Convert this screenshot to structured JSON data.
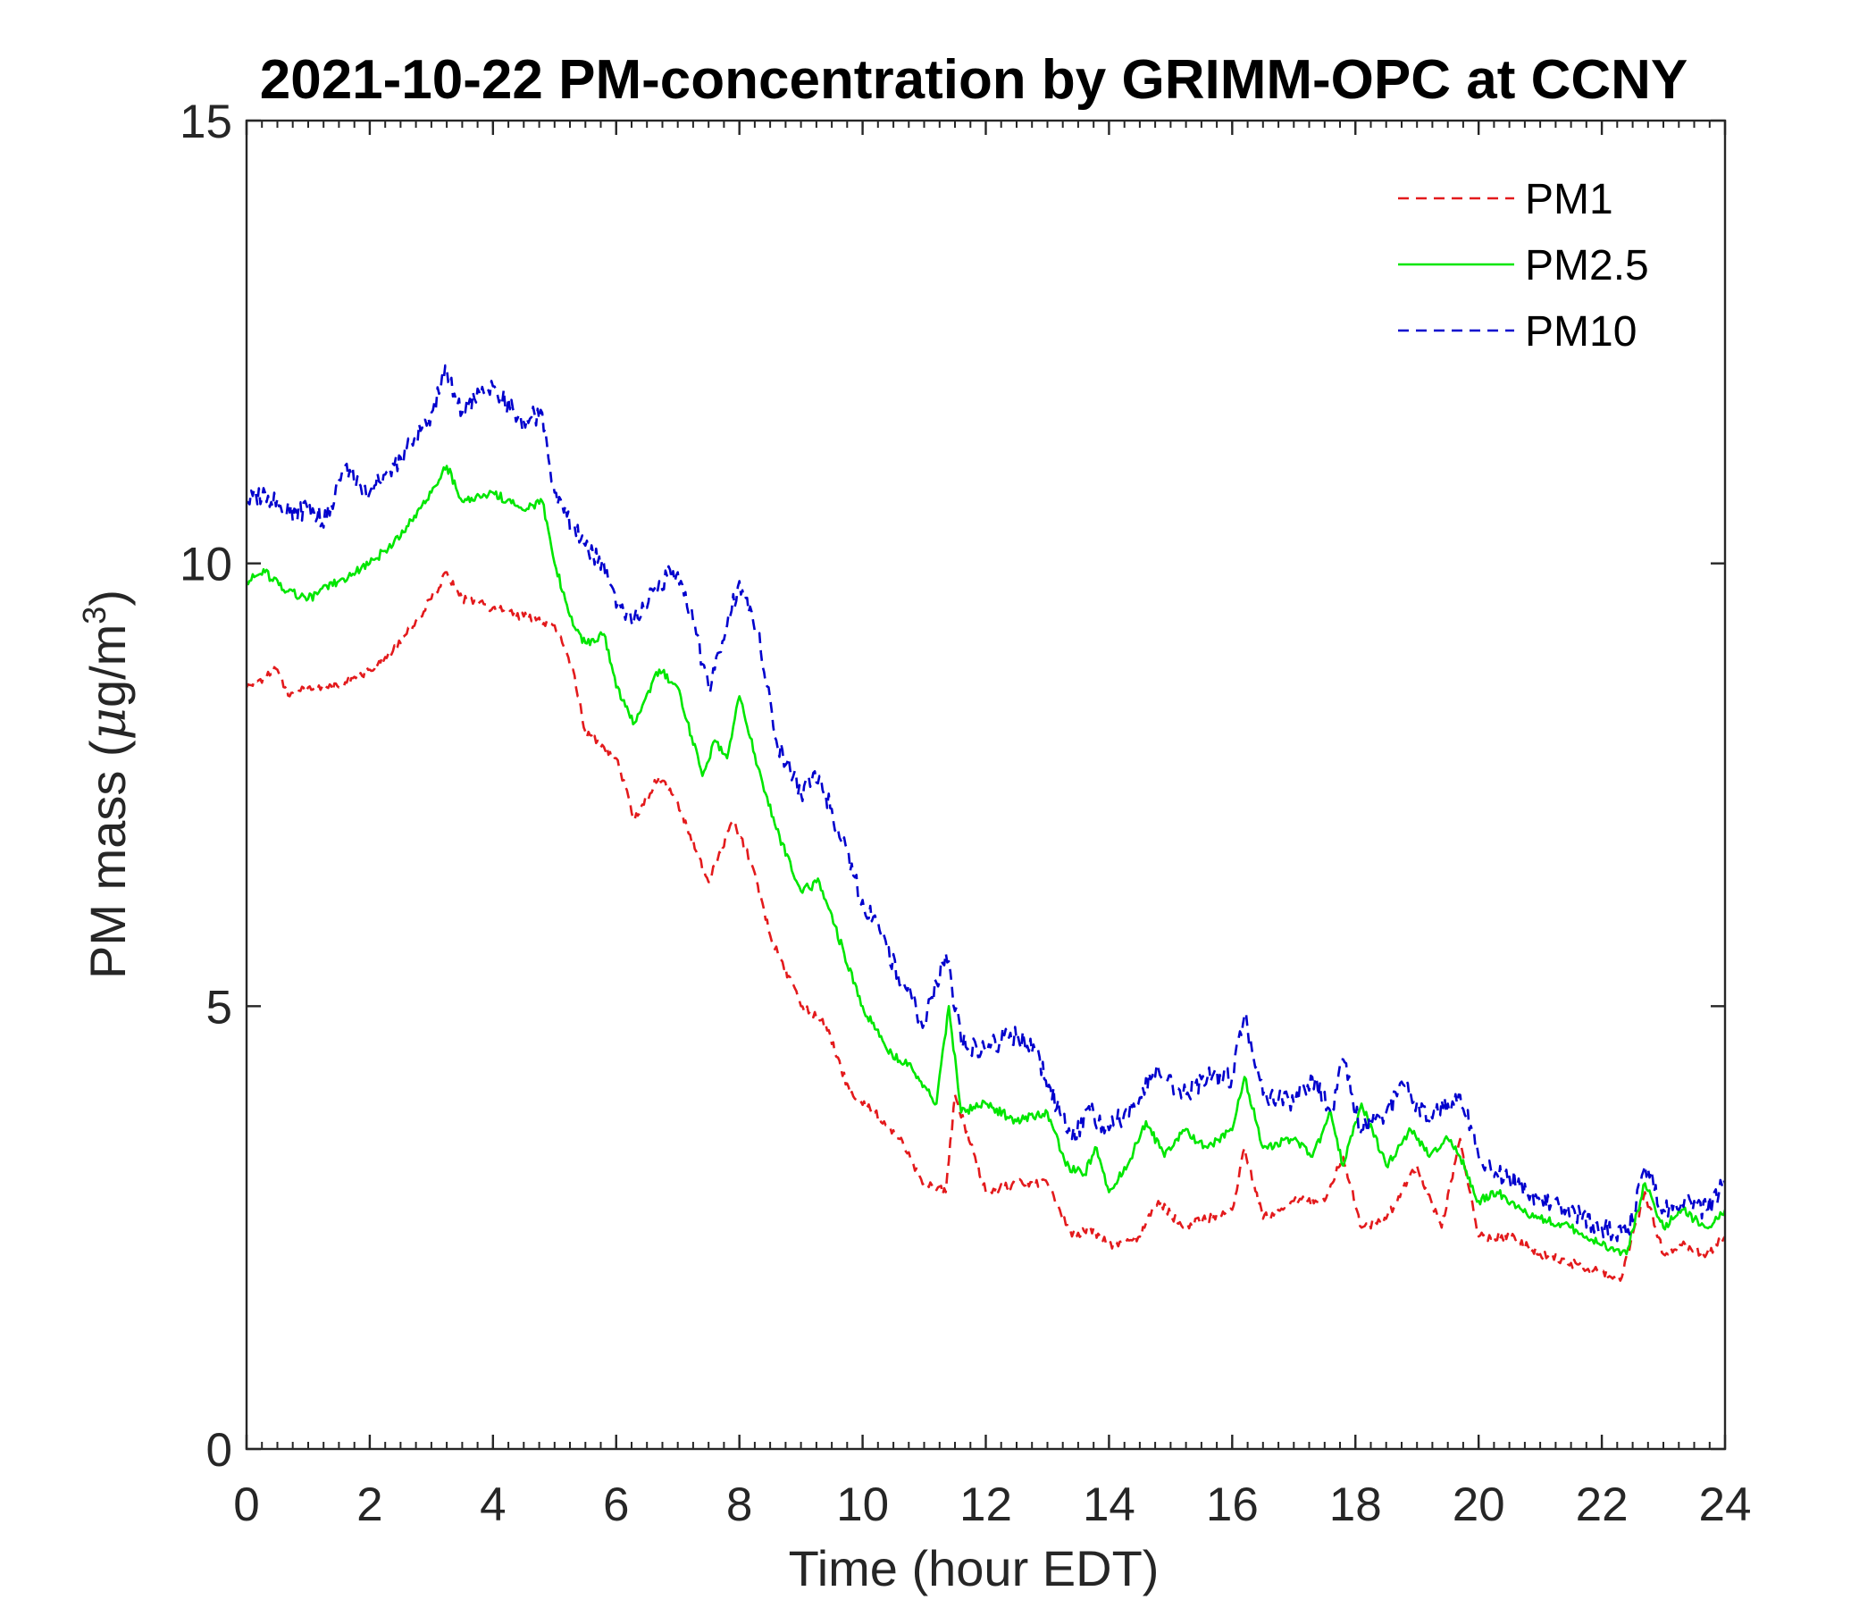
{
  "chart_data": {
    "type": "line",
    "title": "2021-10-22 PM-concentration by GRIMM-OPC at CCNY",
    "xlabel": "Time (hour EDT)",
    "ylabel_prefix": "PM mass (",
    "ylabel_mu": "μ",
    "ylabel_unit": "g/m",
    "ylabel_sup": "3",
    "ylabel_suffix": ")",
    "xlim": [
      0,
      24
    ],
    "ylim": [
      0,
      15
    ],
    "x_ticks": [
      0,
      2,
      4,
      6,
      8,
      10,
      12,
      14,
      16,
      18,
      20,
      22,
      24
    ],
    "x_tick_labels": [
      "0",
      "2",
      "4",
      "6",
      "8",
      "10",
      "12",
      "14",
      "16",
      "18",
      "20",
      "22",
      "24"
    ],
    "y_ticks": [
      0,
      5,
      10,
      15
    ],
    "y_tick_labels": [
      "0",
      "5",
      "10",
      "15"
    ],
    "legend_position": "top-right",
    "series": [
      {
        "name": "PM1",
        "color": "#e31a1c",
        "style": "dashed",
        "x": [
          0,
          0.5,
          0.7,
          1.0,
          1.5,
          2.0,
          2.5,
          3.0,
          3.25,
          3.5,
          4.0,
          4.5,
          5.0,
          5.3,
          5.5,
          6.0,
          6.3,
          6.7,
          7.0,
          7.5,
          7.9,
          8.2,
          8.5,
          9.0,
          9.4,
          9.8,
          10.2,
          10.6,
          11.0,
          11.35,
          11.5,
          12.0,
          12.5,
          13.0,
          13.4,
          13.7,
          14.0,
          14.5,
          14.8,
          15.2,
          15.6,
          16.0,
          16.2,
          16.5,
          17.0,
          17.5,
          17.8,
          18.1,
          18.5,
          19.0,
          19.4,
          19.7,
          20.0,
          20.5,
          21.0,
          21.5,
          22.0,
          22.3,
          22.7,
          23.0,
          23.3,
          23.7,
          24.0
        ],
        "y": [
          8.6,
          8.8,
          8.5,
          8.6,
          8.6,
          8.8,
          9.1,
          9.6,
          9.9,
          9.6,
          9.5,
          9.4,
          9.3,
          8.8,
          8.1,
          7.8,
          7.1,
          7.6,
          7.3,
          6.4,
          7.1,
          6.6,
          5.8,
          5.0,
          4.8,
          4.0,
          3.8,
          3.5,
          3.0,
          2.9,
          4.0,
          2.9,
          3.0,
          3.0,
          2.4,
          2.5,
          2.3,
          2.4,
          2.8,
          2.5,
          2.6,
          2.7,
          3.4,
          2.6,
          2.8,
          2.8,
          3.3,
          2.5,
          2.6,
          3.2,
          2.5,
          3.5,
          2.4,
          2.4,
          2.2,
          2.1,
          2.0,
          1.9,
          2.9,
          2.2,
          2.3,
          2.2,
          2.4
        ]
      },
      {
        "name": "PM2.5",
        "color": "#00e600",
        "style": "solid",
        "x": [
          0,
          0.3,
          0.6,
          1.0,
          1.5,
          2.0,
          2.5,
          3.0,
          3.25,
          3.5,
          4.0,
          4.5,
          4.8,
          5.0,
          5.3,
          5.5,
          5.8,
          6.0,
          6.3,
          6.7,
          7.0,
          7.4,
          7.6,
          7.8,
          8.0,
          8.3,
          8.6,
          9.0,
          9.3,
          9.7,
          10.0,
          10.4,
          10.8,
          11.2,
          11.4,
          11.6,
          12.0,
          12.5,
          13.0,
          13.3,
          13.6,
          13.8,
          14.0,
          14.3,
          14.6,
          14.9,
          15.2,
          15.6,
          16.0,
          16.2,
          16.5,
          17.0,
          17.3,
          17.6,
          17.8,
          18.1,
          18.5,
          18.9,
          19.2,
          19.5,
          19.7,
          20.0,
          20.3,
          20.7,
          21.0,
          21.5,
          22.0,
          22.4,
          22.7,
          23.0,
          23.3,
          23.7,
          24.0
        ],
        "y": [
          9.8,
          9.9,
          9.7,
          9.6,
          9.8,
          10.0,
          10.3,
          10.8,
          11.1,
          10.7,
          10.8,
          10.6,
          10.7,
          10.0,
          9.3,
          9.1,
          9.2,
          8.6,
          8.2,
          8.8,
          8.6,
          7.6,
          8.0,
          7.8,
          8.5,
          7.7,
          7.0,
          6.3,
          6.4,
          5.6,
          5.0,
          4.5,
          4.3,
          3.9,
          5.0,
          3.8,
          3.9,
          3.7,
          3.8,
          3.2,
          3.1,
          3.4,
          2.9,
          3.2,
          3.7,
          3.3,
          3.6,
          3.4,
          3.6,
          4.2,
          3.4,
          3.5,
          3.3,
          3.8,
          3.2,
          3.9,
          3.2,
          3.6,
          3.3,
          3.5,
          3.3,
          2.8,
          2.9,
          2.7,
          2.6,
          2.5,
          2.3,
          2.2,
          3.0,
          2.5,
          2.7,
          2.5,
          2.7
        ]
      },
      {
        "name": "PM10",
        "color": "#0000cd",
        "style": "dashed",
        "x": [
          0,
          0.3,
          0.6,
          1.0,
          1.3,
          1.6,
          2.0,
          2.5,
          3.0,
          3.25,
          3.5,
          3.8,
          4.0,
          4.5,
          4.8,
          5.0,
          5.3,
          5.5,
          5.8,
          6.0,
          6.3,
          6.7,
          7.0,
          7.3,
          7.5,
          7.7,
          8.0,
          8.3,
          8.6,
          9.0,
          9.3,
          9.6,
          10.0,
          10.3,
          10.7,
          11.0,
          11.35,
          11.6,
          12.0,
          12.4,
          12.8,
          13.2,
          13.4,
          13.7,
          14.0,
          14.4,
          14.8,
          15.2,
          15.6,
          16.0,
          16.2,
          16.5,
          17.0,
          17.3,
          17.6,
          17.8,
          18.1,
          18.5,
          18.8,
          19.2,
          19.5,
          19.7,
          20.0,
          20.3,
          20.7,
          21.0,
          21.5,
          22.0,
          22.4,
          22.7,
          23.0,
          23.3,
          23.7,
          24.0
        ],
        "y": [
          10.7,
          10.8,
          10.6,
          10.6,
          10.5,
          11.1,
          10.8,
          11.2,
          11.7,
          12.2,
          11.7,
          11.9,
          12.0,
          11.6,
          11.7,
          10.8,
          10.4,
          10.2,
          10.0,
          9.5,
          9.4,
          9.8,
          9.9,
          9.2,
          8.6,
          9.0,
          9.8,
          9.2,
          8.0,
          7.4,
          7.6,
          7.0,
          6.2,
          5.8,
          5.2,
          4.8,
          5.6,
          4.6,
          4.5,
          4.7,
          4.5,
          3.8,
          3.5,
          3.8,
          3.6,
          3.9,
          4.3,
          4.0,
          4.2,
          4.2,
          4.9,
          4.0,
          3.9,
          4.2,
          3.8,
          4.4,
          3.6,
          3.8,
          4.1,
          3.7,
          3.9,
          4.0,
          3.3,
          3.1,
          3.0,
          2.8,
          2.7,
          2.5,
          2.4,
          3.2,
          2.7,
          2.8,
          2.7,
          3.0
        ]
      }
    ]
  }
}
